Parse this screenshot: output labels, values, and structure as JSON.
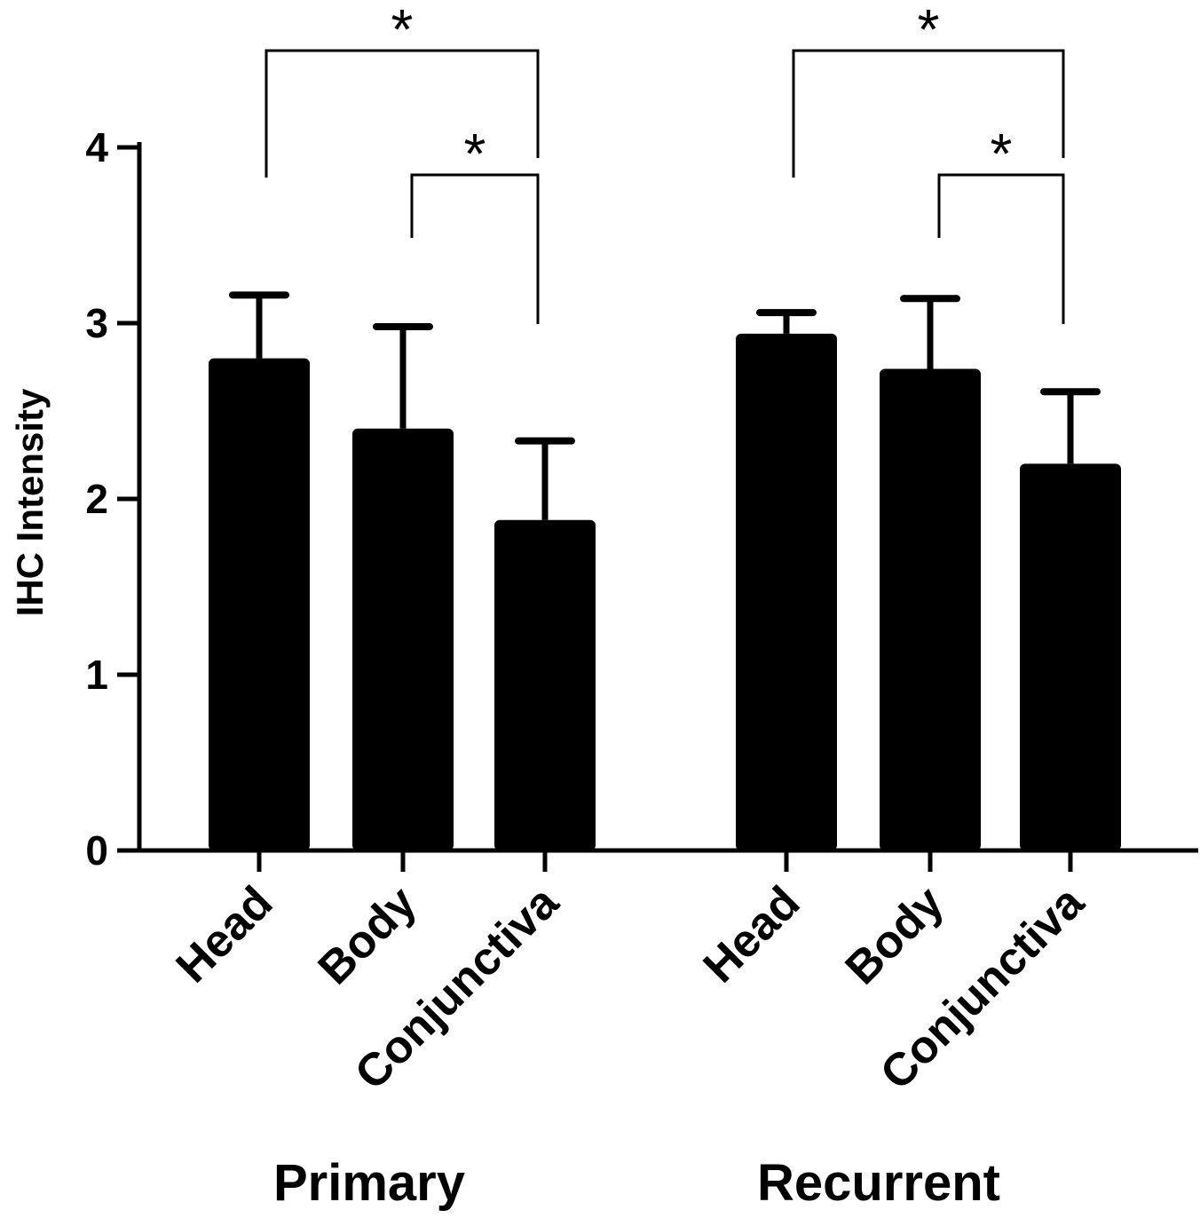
{
  "chart_data": {
    "type": "bar",
    "title": "",
    "ylabel": "IHC Intensity",
    "xlabel": "",
    "ylim": [
      0,
      4
    ],
    "yticks": [
      "0",
      "1",
      "2",
      "3",
      "4"
    ],
    "groups": [
      {
        "name": "Primary",
        "categories": [
          "Head",
          "Body",
          "Conjunctiva"
        ],
        "values": [
          2.8,
          2.4,
          1.88
        ],
        "errors": [
          0.36,
          0.58,
          0.45
        ]
      },
      {
        "name": "Recurrent",
        "categories": [
          "Head",
          "Body",
          "Conjunctiva"
        ],
        "values": [
          2.94,
          2.74,
          2.2
        ],
        "errors": [
          0.12,
          0.4,
          0.41
        ]
      }
    ],
    "significance": [
      {
        "group": 0,
        "from": 0,
        "to": 2,
        "label": "*"
      },
      {
        "group": 0,
        "from": 1,
        "to": 2,
        "label": "*"
      },
      {
        "group": 1,
        "from": 0,
        "to": 2,
        "label": "*"
      },
      {
        "group": 1,
        "from": 1,
        "to": 2,
        "label": "*"
      }
    ],
    "colors": {
      "bar": "#000000",
      "axis": "#000000"
    }
  }
}
